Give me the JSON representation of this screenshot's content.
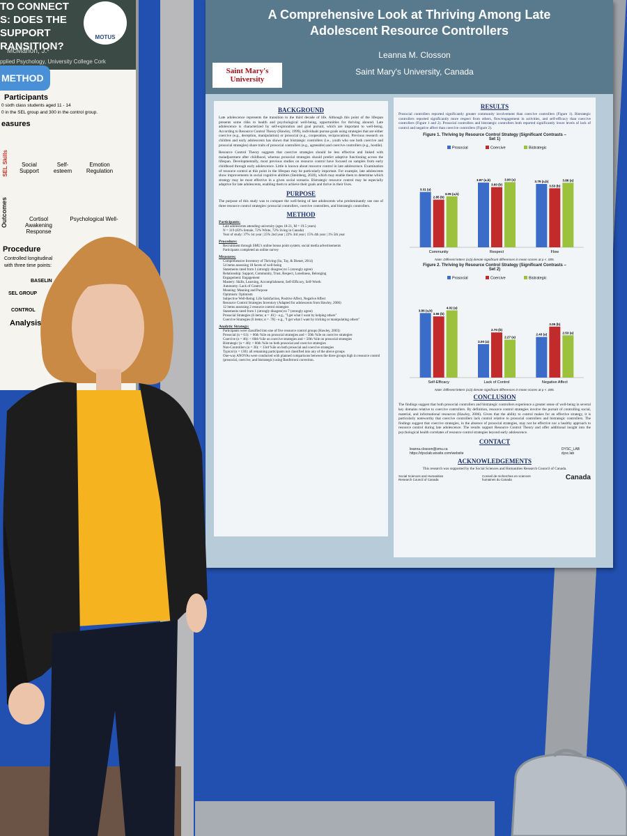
{
  "left_poster": {
    "title_lines": [
      "TO CONNECT",
      "S: DOES THE",
      " SUPPORT",
      "RANSITION?"
    ],
    "logo": "MOTUS",
    "author": "McMahon, J.¹",
    "affiliation": "pplied Psychology, University College Cork",
    "section": "METHOD",
    "participants_heading": "Participants",
    "participants_lines": [
      "0 sixth class students aged 11 - 14",
      "0 in the SEL group and 300 in the control group."
    ],
    "measures_heading": "easures",
    "side_labels": [
      "SEL Skills",
      "Outcomes"
    ],
    "measures": [
      "Social Support",
      "Self-esteem",
      "Emotion Regulation",
      "Cortisol Awakening Response",
      "Psychological Well-"
    ],
    "procedure_heading": "Procedure",
    "procedure_lines": [
      "Controlled longitudinal",
      "with three time points:"
    ],
    "groups": [
      "BASELIN",
      "SEL GROUP",
      "CONTROL"
    ],
    "analysis_heading": "Analysis"
  },
  "poster": {
    "title": "A Comprehensive Look at Thriving Among Late Adolescent Resource Controllers",
    "author": "Leanna M. Closson",
    "affiliation": "Saint Mary's University, Canada",
    "logo": "Saint Mary's University",
    "background": {
      "heading": "BACKGROUND",
      "paragraphs": [
        "Late adolescence represents the transition to the third decade of life. Although this point of the lifespan presents some risks to health and psychological well-being, opportunities for thriving abound. Late adolescence is characterized by self-exploration and goal pursuit, which are important to well-being. According to Resource Control Theory (Hawley, 1999), individuals pursue goals using strategies that are either coercive (e.g., deception, manipulation) or prosocial (e.g., cooperation, reciprocation). Previous research on children and early adolescents has shown that bistrategic controllers (i.e., youth who use both coercive and prosocial strategies) share traits of prosocial controllers (e.g., agreeable) and coercive controllers (e.g., hostile).",
        "Resource Control Theory suggests that coercive strategies should be less effective and linked with maladjustment after childhood, whereas prosocial strategies should predict adaptive functioning across the lifespan. Developmentally, most previous studies on resource control have focused on samples from early childhood through early adolescence. Little is known about resource control in late adolescence. Examination of resource control at this point in the lifespan may be particularly important. For example, late adolescents show improvements in social cognitive abilities (Steinberg, 2020), which may enable them to determine which strategy may be most effective in a given social scenario. Bistrategic resource control may be especially adaptive for late adolescents, enabling them to achieve their goals and thrive in their lives."
      ]
    },
    "purpose": {
      "heading": "PURPOSE",
      "text": "The purpose of this study was to compare the well-being of late adolescents who predominantly use one of three resource control strategies: prosocial controllers, coercive controllers, and bistrategic controllers."
    },
    "method": {
      "heading": "METHOD",
      "sections": [
        {
          "heading": "Participants:",
          "items": [
            "Late adolescents attending university (ages 18-21, M = 19.5 years)",
            "N = 319 (83% female, 72% White, 72% living in Canada)",
            "Year of study: 37% 1st year | 25% 2nd year | 22% 3rd year | 15% 4th year | 1% 5th year"
          ]
        },
        {
          "heading": "Procedure:",
          "items": [
            "Recruitment through SMU's online bonus point system; social media advertisements",
            "Participants completed an online survey"
          ]
        },
        {
          "heading": "Measures:",
          "items": [
            "Comprehensive Inventory of Thriving (Su, Tay, & Diener, 2014)",
            "54 items assessing 18 facets of well-being",
            "Statements rated from 1 (strongly disagree) to 5 (strongly agree)",
            "Relationship: Support, Community, Trust, Respect, Loneliness, Belonging",
            "Engagement: Engagement",
            "Mastery: Skills, Learning, Accomplishment, Self-Efficacy, Self-Worth",
            "Autonomy: Lack of Control",
            "Meaning: Meaning and Purpose",
            "Optimism: Optimism",
            "Subjective Well-Being: Life Satisfaction, Positive Affect, Negative Affect",
            "Resource Control Strategies Inventory (Adapted for adolescents from Hawley, 2006)",
            "12 items assessing 2 resource control strategies",
            "Statements rated from 1 (strongly disagree) to 7 (strongly agree)",
            "Prosocial Strategies (6 items; α = .81) - e.g., \"I get what I want by helping others\"",
            "Coercive Strategies (6 items; α = .78) - e.g., \"I get what I want by tricking or manipulating others\""
          ]
        },
        {
          "heading": "Analytic Strategy:",
          "items": [
            "Participants were classified into one of five resource control groups (Hawley, 2003):",
            "Prosocial (n = 61): > 66th %ile on prosocial strategies and < 50th %ile on coercive strategies",
            "Coercive (n = 46): > 66th %ile on coercive strategies and < 50th %ile on prosocial strategies",
            "Bistrategic (n = 46): > 66th %ile on both prosocial and coercive strategies",
            "Non-Controllers (n = 36): < 33rd %ile on both prosocial and coercive strategies",
            "Typical (n = 130): all remaining participants not classified into any of the above groups",
            "One-way ANOVAs were conducted with planned comparisons between the three groups high in resource control (prosocial, coercive, and bistrategic) using Bonferroni correction."
          ]
        }
      ]
    },
    "results": {
      "heading": "RESULTS",
      "text": "Prosocial controllers reported significantly greater community involvement than coercive controllers (Figure 1). Bistrategic controllers reported significantly more respect from others, flow/engagement in activities, and self-efficacy than coercive controllers (Figure 1 and 2). Prosocial controllers and bistrategic controllers both reported significantly lower levels of lack of control and negative affect than coercive controllers (Figure 2).",
      "figures": [
        {
          "type": "bar",
          "title": "Figure 1. Thriving by Resource Control Strategy (Significant Contrasts – Set 1)",
          "categories": [
            "Community",
            "Respect",
            "Flow"
          ],
          "series": [
            {
              "name": "Prosocial",
              "color": "#3a6cc8",
              "values": [
                3.31,
                3.87,
                3.79
              ],
              "value_labels": [
                "3.31 (a)",
                "3.87 (a,b)",
                "3.79 (a,b)"
              ]
            },
            {
              "name": "Coercive",
              "color": "#c22b2b",
              "values": [
                2.85,
                3.6,
                3.53
              ],
              "value_labels": [
                "2.85 (b)",
                "3.60 (b)",
                "3.53 (b)"
              ]
            },
            {
              "name": "Bistrategic",
              "color": "#9cc13c",
              "values": [
                3.05,
                3.9,
                3.86
              ],
              "value_labels": [
                "3.05 (a,b)",
                "3.90 (a)",
                "3.86 (a)"
              ]
            }
          ],
          "note": "Note: Different letters (a,b) denote significant differences in mean scores at p < .005."
        },
        {
          "type": "bar",
          "title": "Figure 2. Thriving by Resource Control Strategy (Significant Contrasts – Set 2)",
          "categories": [
            "Self-Efficacy",
            "Lack of Control",
            "Negative Affect"
          ],
          "series": [
            {
              "name": "Prosocial",
              "color": "#3a6cc8",
              "values": [
                3.86,
                2.0,
                2.43
              ],
              "value_labels": [
                "3.86 (a,b)",
                "2.00 (a)",
                "2.43 (a)"
              ]
            },
            {
              "name": "Coercive",
              "color": "#c22b2b",
              "values": [
                3.66,
                2.7,
                3.05
              ],
              "value_labels": [
                "3.66 (b)",
                "2.70 (b)",
                "3.05 (b)"
              ]
            },
            {
              "name": "Bistrategic",
              "color": "#9cc13c",
              "values": [
                4.02,
                2.27,
                2.53
              ],
              "value_labels": [
                "4.02 (a)",
                "2.27 (a)",
                "2.53 (a)"
              ]
            }
          ],
          "note": "Note: Different letters (a,b) denote significant differences in mean scores at p < .005."
        }
      ]
    },
    "conclusion": {
      "heading": "CONCLUSION",
      "text": "The findings suggest that both prosocial controllers and bistrategic controllers experience a greater sense of well-being in several key domains relative to coercive controllers. By definition, resource control strategies involve the pursuit of controlling social, material, and informational resources (Hawley, 2006). Given that the ability to control makes for an effective strategy, it is particularly noteworthy that coercive controllers lack control relative to prosocial controllers and bistrategic controllers. The findings suggest that coercive strategies, in the absence of prosocial strategies, may not be effective nor a healthy approach to resource control during late adolescence. The results support Resource Control Theory and offer additional insight into the psychological health correlates of resource control strategies beyond early adolescence."
    },
    "contact": {
      "heading": "CONTACT",
      "email": "leanna.closson@smu.ca",
      "website": "https://dysclab.wixsite.com/website",
      "twitter": "DYSC_LAB",
      "instagram": "dysc.lab"
    },
    "acknowledgements": {
      "heading": "ACKNOWLEDGEMENTS",
      "text": "This research was supported by the Social Sciences and Humanities Research Council of Canada.",
      "sshrc_en": "Social Sciences and Humanities Research Council of Canada",
      "sshrc_fr": "Conseil de recherches en sciences humaines du Canada",
      "canada": "Canada"
    }
  }
}
